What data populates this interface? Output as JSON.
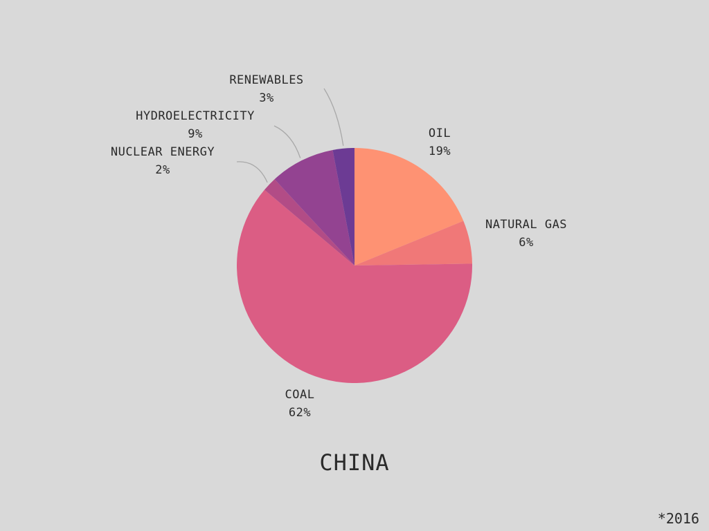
{
  "chart_data": {
    "type": "pie",
    "title": "CHINA",
    "slices": [
      {
        "label": "OIL",
        "value": 19,
        "value_label": "19%",
        "color": "#fe9273"
      },
      {
        "label": "NATURAL GAS",
        "value": 6,
        "value_label": "6%",
        "color": "#f07878"
      },
      {
        "label": "COAL",
        "value": 62,
        "value_label": "62%",
        "color": "#db5d84"
      },
      {
        "label": "NUCLEAR ENERGY",
        "value": 2,
        "value_label": "2%",
        "color": "#b24c86"
      },
      {
        "label": "HYDROELECTRICITY",
        "value": 9,
        "value_label": "9%",
        "color": "#934391"
      },
      {
        "label": "RENEWABLES",
        "value": 3,
        "value_label": "3%",
        "color": "#6c3b94"
      }
    ],
    "footnote": "*2016"
  }
}
